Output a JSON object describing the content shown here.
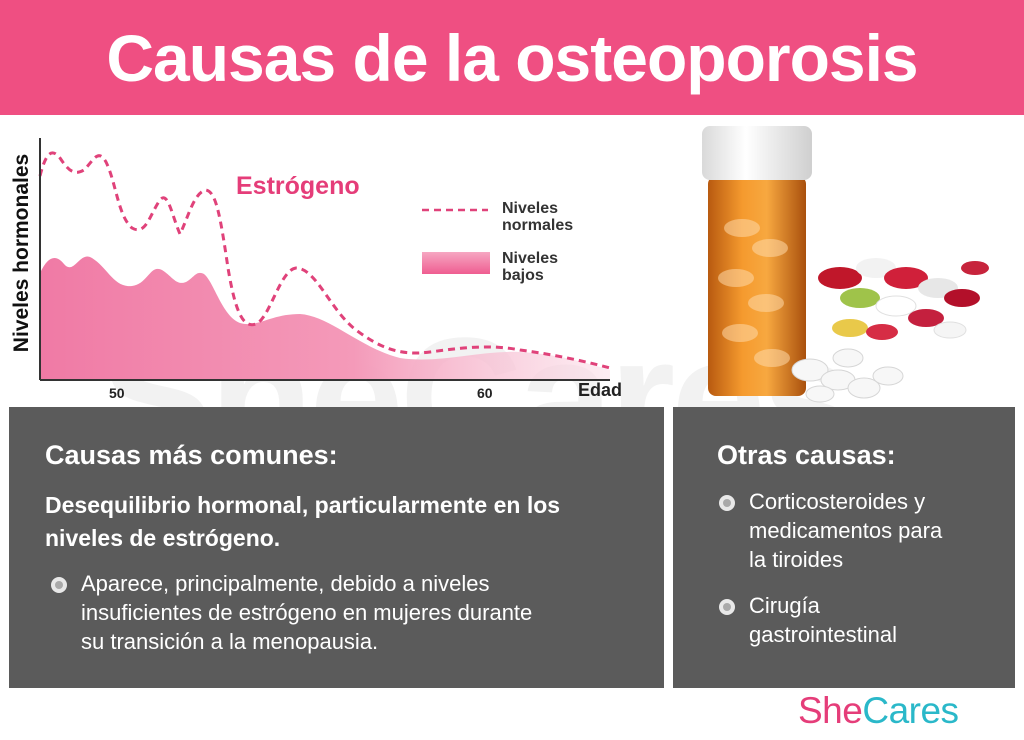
{
  "header": {
    "title": "Causas de la osteoporosis"
  },
  "chart": {
    "series_label": "Estrógeno",
    "ylabel": "Niveles hormonales",
    "xlabel": "Edad",
    "ticks": [
      "50",
      "60"
    ],
    "legend": {
      "normal_line1": "Niveles",
      "normal_line2": "normales",
      "low_line1": "Niveles",
      "low_line2": "bajos"
    },
    "colors": {
      "normal": "#e0427a",
      "low": "#f06a9b"
    }
  },
  "common_causes": {
    "heading": "Causas más comunes:",
    "lead_line1": "Desequilibrio hormonal, particularmente en los",
    "lead_line2": "niveles de estrógeno.",
    "bullet_line1": "Aparece, principalmente, debido a niveles",
    "bullet_line2": "insuficientes de estrógeno en mujeres durante",
    "bullet_line3": "su transición a la menopausia."
  },
  "other_causes": {
    "heading": "Otras causas:",
    "item1_line1": "Corticosteroides y",
    "item1_line2": "medicamentos para",
    "item1_line3": "la tiroides",
    "item2_line1": "Cirugía",
    "item2_line2": "gastrointestinal"
  },
  "brand": {
    "part1": "She",
    "part2": "Cares",
    "watermark": "SheCares"
  }
}
